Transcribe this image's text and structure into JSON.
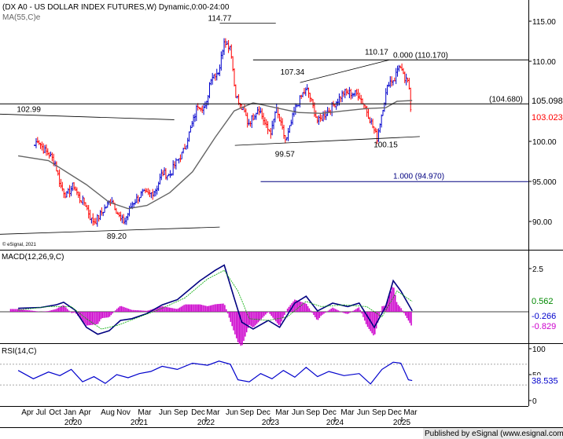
{
  "header": {
    "title": "(DX A0 - US DOLLAR INDEX FUTURES,W) Dynamic,0:00-24:00",
    "ma_label": "MA(55,C)e",
    "esignal_small": "© eSignal, 2021"
  },
  "macd_panel": {
    "label": "MACD(12,26,9,C)"
  },
  "rsi_panel": {
    "label": "RSI(14,C)"
  },
  "footer": {
    "published": "Published by eSignal (www.esignal.com)"
  },
  "chart_data": [
    {
      "type": "candlestick",
      "title": "(DX A0 - US DOLLAR INDEX FUTURES,W) Dynamic,0:00-24:00",
      "ylim": [
        88,
        117
      ],
      "yticks": [
        "90.00",
        "95.000",
        "100.00",
        "105.00",
        "110.00",
        "115.00"
      ],
      "ytick_values": [
        90,
        95,
        100,
        105,
        110,
        115
      ],
      "x_month_labels": [
        "Apr",
        "Jul",
        "Oct",
        "Jan",
        "Apr",
        "Aug",
        "Nov",
        "Mar",
        "Jun",
        "Sep",
        "Dec",
        "Mar",
        "Jun",
        "Sep",
        "Dec",
        "Mar",
        "Jun",
        "Sep",
        "Dec",
        "Mar",
        "Jun",
        "Sep",
        "Dec",
        "Mar"
      ],
      "x_year_labels": [
        "2020",
        "2021",
        "2022",
        "2023",
        "2024",
        "2025"
      ],
      "close_path": [
        [
          "2020-03-20",
          99.5
        ],
        [
          "2020-04-03",
          100.3
        ],
        [
          "2020-05-01",
          99.0
        ],
        [
          "2020-05-29",
          98.4
        ],
        [
          "2020-06-26",
          97.4
        ],
        [
          "2020-07-24",
          94.4
        ],
        [
          "2020-08-21",
          93.2
        ],
        [
          "2020-09-25",
          94.6
        ],
        [
          "2020-10-23",
          92.8
        ],
        [
          "2020-11-20",
          92.3
        ],
        [
          "2020-12-18",
          90.2
        ],
        [
          "2021-01-08",
          90.0
        ],
        [
          "2021-02-05",
          91.0
        ],
        [
          "2021-03-26",
          92.8
        ],
        [
          "2021-05-07",
          90.2
        ],
        [
          "2021-05-28",
          90.0
        ],
        [
          "2021-07-02",
          92.2
        ],
        [
          "2021-08-20",
          93.5
        ],
        [
          "2021-09-24",
          93.3
        ],
        [
          "2021-10-29",
          94.1
        ],
        [
          "2021-11-26",
          96.1
        ],
        [
          "2021-12-31",
          95.7
        ],
        [
          "2022-01-28",
          97.2
        ],
        [
          "2022-03-04",
          98.6
        ],
        [
          "2022-04-29",
          103.0
        ],
        [
          "2022-05-13",
          104.6
        ],
        [
          "2022-06-24",
          104.1
        ],
        [
          "2022-07-15",
          108.0
        ],
        [
          "2022-08-26",
          108.8
        ],
        [
          "2022-09-23",
          113.2
        ],
        [
          "2022-09-30",
          112.1
        ],
        [
          "2022-10-21",
          111.9
        ],
        [
          "2022-11-11",
          106.3
        ],
        [
          "2022-12-02",
          104.5
        ],
        [
          "2022-12-30",
          103.5
        ],
        [
          "2023-01-13",
          102.2
        ],
        [
          "2023-02-03",
          102.9
        ],
        [
          "2023-03-03",
          104.3
        ],
        [
          "2023-04-14",
          101.5
        ],
        [
          "2023-05-05",
          101.2
        ],
        [
          "2023-05-26",
          104.1
        ],
        [
          "2023-07-14",
          99.9
        ],
        [
          "2023-08-25",
          103.9
        ],
        [
          "2023-10-06",
          106.1
        ],
        [
          "2023-10-27",
          106.4
        ],
        [
          "2023-12-15",
          102.4
        ],
        [
          "2024-01-19",
          103.4
        ],
        [
          "2024-02-16",
          104.1
        ],
        [
          "2024-04-19",
          106.1
        ],
        [
          "2024-06-28",
          105.9
        ],
        [
          "2024-08-02",
          104.2
        ],
        [
          "2024-09-27",
          100.4
        ],
        [
          "2024-10-25",
          104.3
        ],
        [
          "2024-11-22",
          107.4
        ],
        [
          "2024-12-20",
          107.8
        ],
        [
          "2025-01-10",
          109.6
        ],
        [
          "2025-02-07",
          107.7
        ],
        [
          "2025-02-28",
          107.2
        ],
        [
          "2025-03-07",
          103.9
        ]
      ],
      "ma_series": {
        "name": "MA(55,C)e",
        "values": [
          [
            2020,
            98.2
          ],
          [
            2020.4,
            97.6
          ],
          [
            2020.9,
            94.6
          ],
          [
            2021.2,
            92.4
          ],
          [
            2021.45,
            91.6
          ],
          [
            2021.7,
            92.0
          ],
          [
            2022.0,
            93.6
          ],
          [
            2022.3,
            96.2
          ],
          [
            2022.6,
            100.5
          ],
          [
            2022.85,
            103.8
          ],
          [
            2023.1,
            104.8
          ],
          [
            2023.4,
            104.2
          ],
          [
            2023.7,
            103.6
          ],
          [
            2024.0,
            103.5
          ],
          [
            2024.3,
            103.8
          ],
          [
            2024.6,
            104.1
          ],
          [
            2024.85,
            104.2
          ],
          [
            2025.0,
            105.0
          ],
          [
            2025.2,
            105.1
          ]
        ]
      },
      "horizontal_lines": [
        {
          "label": "(104.680)",
          "value": 104.68
        },
        {
          "label": "0.000 (110.170)",
          "value": 110.17
        },
        {
          "label": "1.000 (94.970)",
          "value": 94.97
        }
      ],
      "annotations": [
        {
          "label": "114.77",
          "value": 114.77
        },
        {
          "label": "110.17",
          "value": 110.17
        },
        {
          "label": "107.34",
          "value": 107.34
        },
        {
          "label": "102.99",
          "value": 102.99
        },
        {
          "label": "99.57",
          "value": 99.57
        },
        {
          "label": "100.15",
          "value": 100.15
        },
        {
          "label": "89.20",
          "value": 89.2
        }
      ],
      "last_values": [
        {
          "label": "105.098",
          "color": "#000000"
        },
        {
          "label": "103.023",
          "color": "#ff0000"
        }
      ],
      "colors": {
        "up": "#0000cc",
        "down": "#ff0000",
        "ma": "#666666"
      }
    },
    {
      "type": "line",
      "title": "MACD(12,26,9,C)",
      "ylim": [
        -1.7,
        2.9
      ],
      "yticks": [
        "2.5"
      ],
      "ytick_values": [
        2.5
      ],
      "series": [
        {
          "name": "MACD",
          "values": [
            [
              2020,
              0.2
            ],
            [
              2020.3,
              0.25
            ],
            [
              2020.5,
              0.4
            ],
            [
              2020.6,
              0.55
            ],
            [
              2020.75,
              0.1
            ],
            [
              2020.9,
              -0.9
            ],
            [
              2021.05,
              -1.3
            ],
            [
              2021.2,
              -1.1
            ],
            [
              2021.35,
              -0.5
            ],
            [
              2021.5,
              -0.4
            ],
            [
              2021.7,
              -0.1
            ],
            [
              2021.9,
              0.4
            ],
            [
              2022.1,
              0.7
            ],
            [
              2022.4,
              1.8
            ],
            [
              2022.6,
              2.4
            ],
            [
              2022.72,
              2.7
            ],
            [
              2022.85,
              0.8
            ],
            [
              2022.95,
              -0.6
            ],
            [
              2023.1,
              -1.0
            ],
            [
              2023.3,
              -0.5
            ],
            [
              2023.45,
              -0.9
            ],
            [
              2023.65,
              0.5
            ],
            [
              2023.8,
              0.9
            ],
            [
              2023.95,
              0.05
            ],
            [
              2024.15,
              0.5
            ],
            [
              2024.35,
              0.3
            ],
            [
              2024.5,
              0.5
            ],
            [
              2024.7,
              -0.9
            ],
            [
              2024.85,
              0.3
            ],
            [
              2024.95,
              1.8
            ],
            [
              2025.05,
              1.2
            ],
            [
              2025.2,
              0.05
            ]
          ]
        },
        {
          "name": "Signal",
          "values": [
            [
              2020,
              0.1
            ],
            [
              2020.4,
              0.3
            ],
            [
              2020.7,
              0.3
            ],
            [
              2020.9,
              -0.4
            ],
            [
              2021.1,
              -1.0
            ],
            [
              2021.3,
              -0.8
            ],
            [
              2021.6,
              -0.3
            ],
            [
              2021.9,
              0.2
            ],
            [
              2022.2,
              0.8
            ],
            [
              2022.5,
              1.9
            ],
            [
              2022.72,
              2.4
            ],
            [
              2022.9,
              1.2
            ],
            [
              2023.05,
              -0.4
            ],
            [
              2023.3,
              -0.5
            ],
            [
              2023.55,
              -0.3
            ],
            [
              2023.8,
              0.6
            ],
            [
              2024.0,
              0.3
            ],
            [
              2024.3,
              0.4
            ],
            [
              2024.6,
              0.3
            ],
            [
              2024.8,
              -0.3
            ],
            [
              2025.0,
              1.2
            ],
            [
              2025.2,
              0.6
            ]
          ]
        }
      ],
      "last_values": [
        {
          "label": "0.562",
          "color": "#008800"
        },
        {
          "label": "-0.266",
          "color": "#0000cc"
        },
        {
          "label": "-0.829",
          "color": "#cc00cc"
        }
      ]
    },
    {
      "type": "line",
      "title": "RSI(14,C)",
      "ylim": [
        0,
        100
      ],
      "yticks": [
        "0",
        "50",
        "100"
      ],
      "ytick_values": [
        0,
        50,
        100
      ],
      "reference_lines": [
        30,
        70
      ],
      "series": [
        {
          "name": "RSI(14,C)",
          "values": [
            [
              2020,
              58
            ],
            [
              2020.2,
              42
            ],
            [
              2020.4,
              55
            ],
            [
              2020.55,
              48
            ],
            [
              2020.7,
              60
            ],
            [
              2020.85,
              36
            ],
            [
              2021.0,
              46
            ],
            [
              2021.15,
              33
            ],
            [
              2021.3,
              50
            ],
            [
              2021.45,
              44
            ],
            [
              2021.6,
              52
            ],
            [
              2021.75,
              56
            ],
            [
              2021.9,
              66
            ],
            [
              2022.1,
              60
            ],
            [
              2022.3,
              72
            ],
            [
              2022.5,
              68
            ],
            [
              2022.65,
              76
            ],
            [
              2022.8,
              70
            ],
            [
              2022.9,
              40
            ],
            [
              2023.05,
              36
            ],
            [
              2023.2,
              52
            ],
            [
              2023.35,
              42
            ],
            [
              2023.5,
              58
            ],
            [
              2023.65,
              45
            ],
            [
              2023.8,
              64
            ],
            [
              2023.95,
              46
            ],
            [
              2024.1,
              56
            ],
            [
              2024.3,
              48
            ],
            [
              2024.5,
              52
            ],
            [
              2024.65,
              32
            ],
            [
              2024.8,
              60
            ],
            [
              2024.95,
              74
            ],
            [
              2025.05,
              72
            ],
            [
              2025.15,
              40
            ],
            [
              2025.2,
              38.5
            ]
          ]
        }
      ],
      "last_values": [
        {
          "label": "38.535",
          "color": "#0000cc"
        }
      ]
    }
  ]
}
